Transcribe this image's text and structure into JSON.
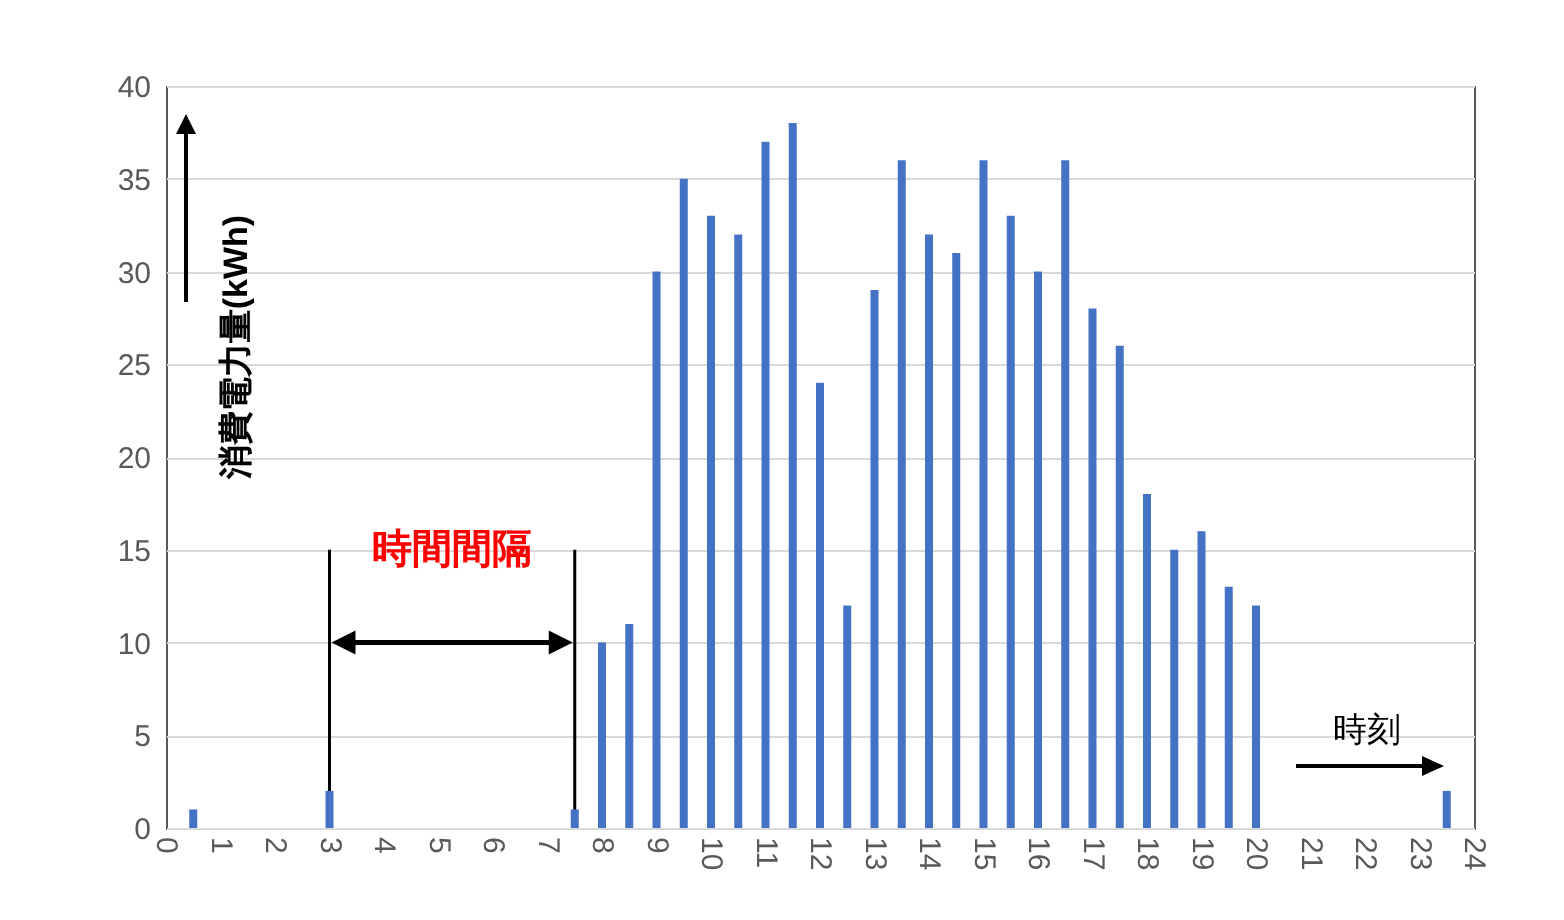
{
  "chart_data": {
    "type": "bar",
    "xlabel": "時刻",
    "ylabel": "消費電力量(kWh)",
    "x": [
      0.5,
      3,
      7.5,
      8,
      8.5,
      9,
      9.5,
      10,
      10.5,
      11,
      11.5,
      12,
      12.5,
      13,
      13.5,
      14,
      14.5,
      15,
      15.5,
      16,
      16.5,
      17,
      17.5,
      18,
      18.5,
      19,
      19.5,
      20,
      23.5
    ],
    "values": [
      1,
      2,
      1,
      10,
      11,
      30,
      35,
      33,
      32,
      37,
      38,
      24,
      12,
      29,
      36,
      32,
      31,
      36,
      33,
      30,
      36,
      28,
      26,
      18,
      15,
      16,
      13,
      12,
      2
    ],
    "color": "#4472c4",
    "xlim": [
      0,
      24
    ],
    "xticks": [
      0,
      1,
      2,
      3,
      4,
      5,
      6,
      7,
      8,
      9,
      10,
      11,
      12,
      13,
      14,
      15,
      16,
      17,
      18,
      19,
      20,
      21,
      22,
      23,
      24
    ],
    "ylim": [
      0,
      40
    ],
    "yticks": [
      0,
      5,
      10,
      15,
      20,
      25,
      30,
      35,
      40
    ],
    "grid": "y",
    "ref_lines": [
      {
        "axis": "x",
        "value": 3,
        "color": "#000000"
      },
      {
        "axis": "x",
        "value": 7.5,
        "color": "#000000"
      }
    ],
    "annotations": [
      "時間間隔"
    ]
  }
}
